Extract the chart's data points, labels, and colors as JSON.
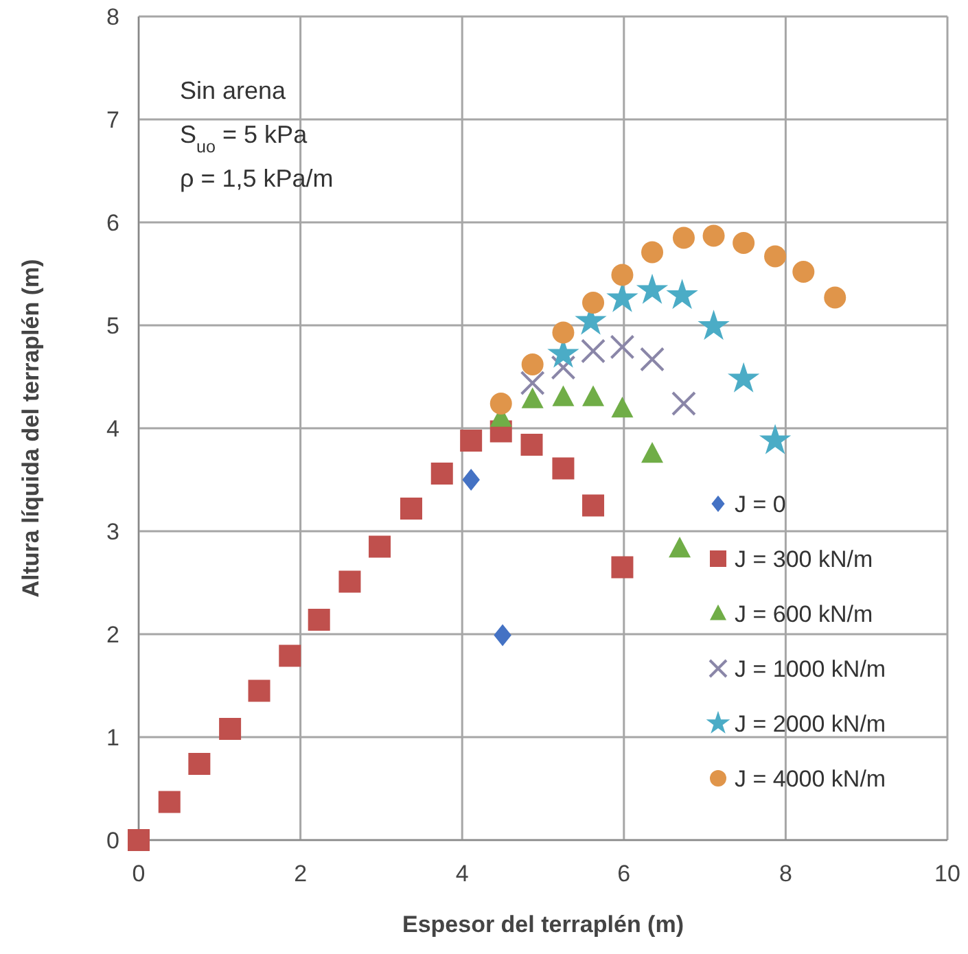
{
  "chart_data": {
    "type": "scatter",
    "xlabel": "Espesor del terraplén (m)",
    "ylabel": "Altura líquida del terraplén (m)",
    "xlim": [
      0,
      10
    ],
    "ylim": [
      0,
      8
    ],
    "xticks": [
      0,
      2,
      4,
      6,
      8,
      10
    ],
    "yticks": [
      0,
      1,
      2,
      3,
      4,
      5,
      6,
      7,
      8
    ],
    "grid": true,
    "legend": "bottom right",
    "annotations": [
      "Sin arena",
      "S$_{uo}$ = 5 kPa",
      "ρ = 1,5 kPa/m"
    ],
    "series": [
      {
        "name": "J = 0",
        "color": "#4472c4",
        "marker": "diamond",
        "x": [
          4.11,
          4.5
        ],
        "values": [
          3.5,
          1.99
        ]
      },
      {
        "name": "J = 300 kN/m",
        "color": "#c0504d",
        "marker": "square",
        "x": [
          0,
          0.38,
          0.75,
          1.13,
          1.49,
          1.87,
          2.23,
          2.61,
          2.98,
          3.37,
          3.75,
          4.11,
          4.48,
          4.86,
          5.25,
          5.62,
          5.98
        ],
        "values": [
          0,
          0.37,
          0.74,
          1.08,
          1.45,
          1.79,
          2.14,
          2.51,
          2.85,
          3.22,
          3.56,
          3.88,
          3.97,
          3.84,
          3.61,
          3.25,
          2.65
        ]
      },
      {
        "name": "J = 600 kN/m",
        "color": "#70ad47",
        "marker": "triangle",
        "x": [
          4.48,
          4.87,
          5.25,
          5.62,
          5.98,
          6.35,
          6.69
        ],
        "values": [
          4.1,
          4.28,
          4.3,
          4.3,
          4.19,
          3.75,
          2.83
        ]
      },
      {
        "name": "J = 1000 kN/m",
        "color": "#8a86a8",
        "marker": "cross",
        "x": [
          4.87,
          5.25,
          5.62,
          5.98,
          6.35,
          6.74
        ],
        "values": [
          4.44,
          4.59,
          4.75,
          4.79,
          4.67,
          4.24
        ]
      },
      {
        "name": "J = 2000 kN/m",
        "color": "#4bacc6",
        "marker": "star",
        "x": [
          5.25,
          5.59,
          5.98,
          6.35,
          6.72,
          7.11,
          7.48,
          7.87
        ],
        "values": [
          4.72,
          5.04,
          5.26,
          5.34,
          5.29,
          4.99,
          4.48,
          3.88
        ]
      },
      {
        "name": "J = 4000 kN/m",
        "color": "#e0954a",
        "marker": "circle",
        "x": [
          4.48,
          4.87,
          5.25,
          5.62,
          5.98,
          6.35,
          6.74,
          7.11,
          7.48,
          7.87,
          8.22,
          8.61
        ],
        "values": [
          4.24,
          4.62,
          4.93,
          5.22,
          5.49,
          5.71,
          5.85,
          5.87,
          5.8,
          5.67,
          5.52,
          5.27
        ]
      }
    ]
  }
}
